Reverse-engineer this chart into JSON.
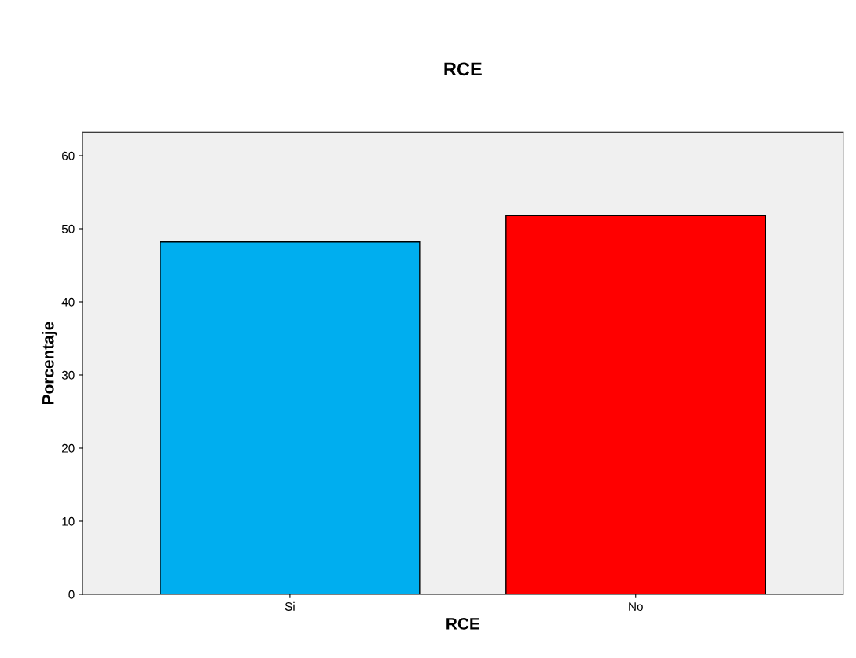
{
  "chart_data": {
    "type": "bar",
    "title": "RCE",
    "xlabel": "RCE",
    "ylabel": "Porcentaje",
    "categories": [
      "Si",
      "No"
    ],
    "values": [
      48.2,
      51.8
    ],
    "colors": [
      "#00aeef",
      "#ff0000"
    ],
    "ylim": [
      0,
      63.2
    ],
    "yticks": [
      0,
      10,
      20,
      30,
      40,
      50,
      60
    ],
    "grid": false,
    "legend": false
  }
}
